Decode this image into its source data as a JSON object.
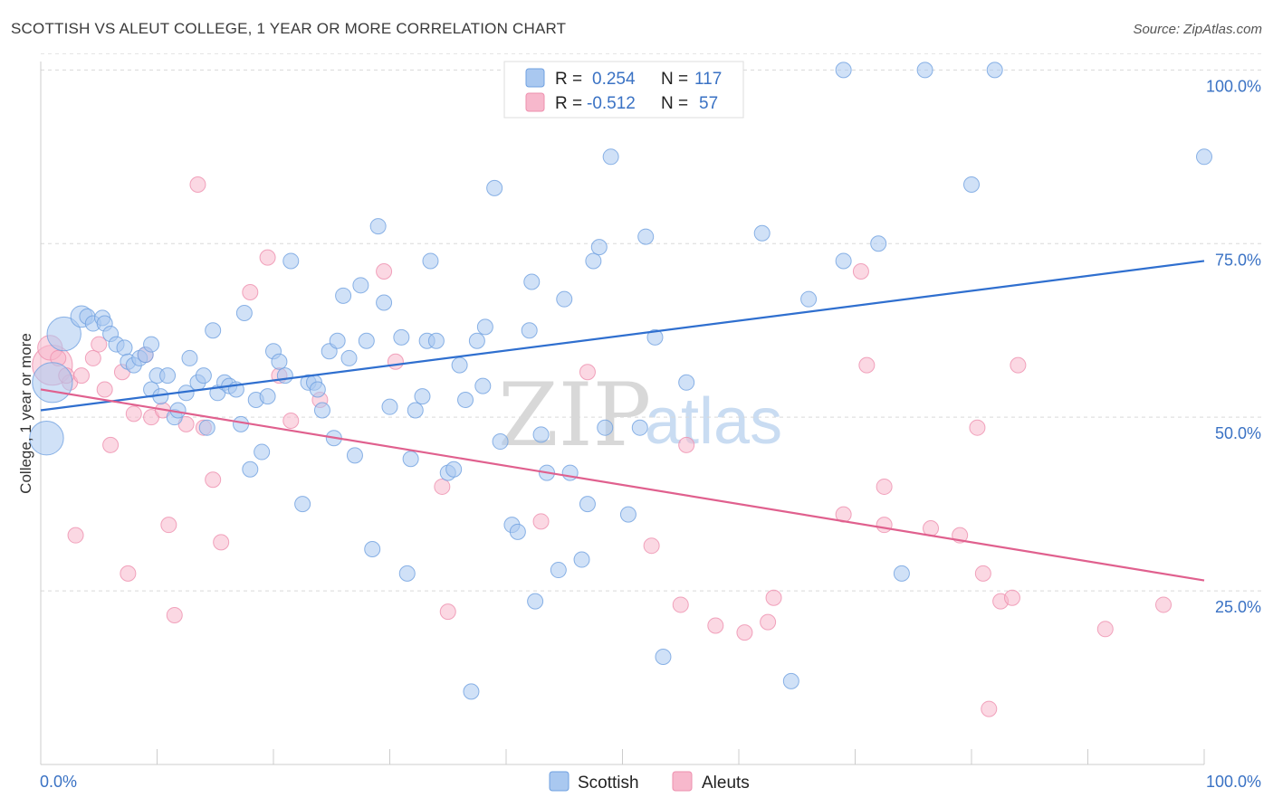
{
  "header": {
    "title": "SCOTTISH VS ALEUT COLLEGE, 1 YEAR OR MORE CORRELATION CHART",
    "source": "Source: ZipAtlas.com"
  },
  "watermark": {
    "part1": "ZIP",
    "part2": "atlas"
  },
  "legend": {
    "rows": [
      {
        "r_label": "R =",
        "r_value": "0.254",
        "n_label": "N =",
        "n_value": "117",
        "color": "#a9c8f0"
      },
      {
        "r_label": "R =",
        "r_value": "-0.512",
        "n_label": "N =",
        "n_value": "57",
        "color": "#f7b8cc"
      }
    ]
  },
  "bottom_legend": [
    {
      "label": "Scottish",
      "color": "#a9c8f0"
    },
    {
      "label": "Aleuts",
      "color": "#f7b8cc"
    }
  ],
  "chart_data": {
    "type": "scatter",
    "title": "SCOTTISH VS ALEUT COLLEGE, 1 YEAR OR MORE CORRELATION CHART",
    "ylabel": "College, 1 year or more",
    "xlabel": "",
    "xlim": [
      0,
      100
    ],
    "ylim": [
      0,
      102
    ],
    "y_ticks": [
      {
        "value": 25,
        "label": "25.0%"
      },
      {
        "value": 50,
        "label": "50.0%"
      },
      {
        "value": 75,
        "label": "75.0%"
      },
      {
        "value": 100,
        "label": "100.0%"
      }
    ],
    "x_ticks": [
      {
        "value": 0,
        "label": "0.0%"
      },
      {
        "value": 100,
        "label": "100.0%"
      }
    ],
    "grid": true,
    "legend_placement": "top-center",
    "series": [
      {
        "name": "Scottish",
        "color": "#6fa0e0",
        "fill": "#a9c8f0",
        "trend": {
          "x": [
            0,
            100
          ],
          "y": [
            51.0,
            72.5
          ],
          "color": "#2f6fcf"
        },
        "points": [
          [
            0.5,
            47,
            2.2
          ],
          [
            1.0,
            55,
            2.6
          ],
          [
            2.0,
            62,
            2.2
          ],
          [
            3.5,
            64.5,
            1.4
          ],
          [
            4.0,
            64.5,
            1.0
          ],
          [
            4.5,
            63.5,
            1.0
          ],
          [
            5.3,
            64.3,
            1.0
          ],
          [
            5.5,
            63.5,
            1.0
          ],
          [
            6.0,
            62,
            1.0
          ],
          [
            6.5,
            60.5,
            1.0
          ],
          [
            7.2,
            60,
            1.0
          ],
          [
            7.5,
            58,
            1.0
          ],
          [
            8.0,
            57.5,
            1.0
          ],
          [
            8.5,
            58.5,
            1.0
          ],
          [
            9.0,
            59,
            1.0
          ],
          [
            9.5,
            54,
            1.0
          ],
          [
            10.0,
            56,
            1.0
          ],
          [
            10.3,
            53,
            1.0
          ],
          [
            10.9,
            56,
            1.0
          ],
          [
            11.5,
            50,
            1.0
          ],
          [
            11.8,
            51,
            1.0
          ],
          [
            12.5,
            53.5,
            1.0
          ],
          [
            12.8,
            58.5,
            1.0
          ],
          [
            13.5,
            55,
            1.0
          ],
          [
            14.0,
            56,
            1.0
          ],
          [
            14.3,
            48.5,
            1.0
          ],
          [
            14.8,
            62.5,
            1.0
          ],
          [
            15.2,
            53.5,
            1.0
          ],
          [
            15.8,
            55,
            1.0
          ],
          [
            16.2,
            54.5,
            1.0
          ],
          [
            16.8,
            54,
            1.0
          ],
          [
            17.2,
            49,
            1.0
          ],
          [
            17.5,
            65,
            1.0
          ],
          [
            18.0,
            42.5,
            1.0
          ],
          [
            18.5,
            52.5,
            1.0
          ],
          [
            19.0,
            45,
            1.0
          ],
          [
            19.5,
            53,
            1.0
          ],
          [
            20.0,
            59.5,
            1.0
          ],
          [
            20.5,
            58,
            1.0
          ],
          [
            21.0,
            56,
            1.0
          ],
          [
            21.5,
            72.5,
            1.0
          ],
          [
            22.5,
            37.5,
            1.0
          ],
          [
            23.0,
            55,
            1.0
          ],
          [
            23.5,
            55,
            1.0
          ],
          [
            23.8,
            54,
            1.0
          ],
          [
            24.2,
            51,
            1.0
          ],
          [
            24.8,
            59.5,
            1.0
          ],
          [
            25.5,
            61,
            1.0
          ],
          [
            25.2,
            47,
            1.0
          ],
          [
            26.5,
            58.5,
            1.0
          ],
          [
            27.0,
            44.5,
            1.0
          ],
          [
            26.0,
            67.5,
            1.0
          ],
          [
            27.5,
            69,
            1.0
          ],
          [
            28.0,
            61,
            1.0
          ],
          [
            28.5,
            31,
            1.0
          ],
          [
            29.0,
            77.5,
            1.0
          ],
          [
            29.5,
            66.5,
            1.0
          ],
          [
            30.0,
            51.5,
            1.0
          ],
          [
            31.0,
            61.5,
            1.0
          ],
          [
            31.5,
            27.5,
            1.0
          ],
          [
            31.8,
            44,
            1.0
          ],
          [
            32.2,
            51,
            1.0
          ],
          [
            32.8,
            53,
            1.0
          ],
          [
            33.2,
            61,
            1.0
          ],
          [
            34.0,
            61,
            1.0
          ],
          [
            33.5,
            72.5,
            1.0
          ],
          [
            35.0,
            42,
            1.0
          ],
          [
            35.5,
            42.5,
            1.0
          ],
          [
            36.0,
            57.5,
            1.0
          ],
          [
            36.5,
            52.5,
            1.0
          ],
          [
            37.5,
            61,
            1.0
          ],
          [
            38.2,
            63,
            1.0
          ],
          [
            38.0,
            54.5,
            1.0
          ],
          [
            37.0,
            10.5,
            1.0
          ],
          [
            39.0,
            83,
            1.0
          ],
          [
            39.5,
            46.5,
            1.0
          ],
          [
            40.5,
            34.5,
            1.0
          ],
          [
            41.0,
            33.5,
            1.0
          ],
          [
            42.0,
            62.5,
            1.0
          ],
          [
            42.2,
            69.5,
            1.0
          ],
          [
            42.5,
            23.5,
            1.0
          ],
          [
            43.0,
            47.5,
            1.0
          ],
          [
            43.5,
            42,
            1.0
          ],
          [
            44.5,
            28,
            1.0
          ],
          [
            45.0,
            67,
            1.0
          ],
          [
            45.5,
            42,
            1.0
          ],
          [
            46.5,
            29.5,
            1.0
          ],
          [
            47.0,
            37.5,
            1.0
          ],
          [
            47.5,
            72.5,
            1.0
          ],
          [
            48.0,
            74.5,
            1.0
          ],
          [
            48.5,
            48.5,
            1.0
          ],
          [
            49.0,
            87.5,
            1.0
          ],
          [
            50.5,
            36,
            1.0
          ],
          [
            51.5,
            48.5,
            1.0
          ],
          [
            52.0,
            76,
            1.0
          ],
          [
            52.8,
            61.5,
            1.0
          ],
          [
            53.5,
            15.5,
            1.0
          ],
          [
            55.5,
            55,
            1.0
          ],
          [
            58.0,
            100,
            1.0
          ],
          [
            62.0,
            76.5,
            1.0
          ],
          [
            64.5,
            12,
            1.0
          ],
          [
            66.0,
            67,
            1.0
          ],
          [
            69.0,
            100,
            1.0
          ],
          [
            69.0,
            72.5,
            1.0
          ],
          [
            72.0,
            75,
            1.0
          ],
          [
            74.0,
            27.5,
            1.0
          ],
          [
            76.0,
            100,
            1.0
          ],
          [
            80.0,
            83.5,
            1.0
          ],
          [
            82.0,
            100,
            1.0
          ],
          [
            100.0,
            87.5,
            1.0
          ],
          [
            42.0,
            95,
            1.0
          ],
          [
            51.5,
            95,
            1.0
          ],
          [
            59.0,
            100,
            1.0
          ],
          [
            55.0,
            100,
            1.0
          ],
          [
            9.5,
            60.5,
            1.0
          ]
        ]
      },
      {
        "name": "Aleuts",
        "color": "#ee8fae",
        "fill": "#f7b8cc",
        "trend": {
          "x": [
            0,
            100
          ],
          "y": [
            54.0,
            26.5
          ],
          "color": "#e0608e"
        },
        "points": [
          [
            1.0,
            57.5,
            2.6
          ],
          [
            0.8,
            60,
            1.6
          ],
          [
            1.5,
            58.5,
            1.0
          ],
          [
            2.5,
            55,
            1.0
          ],
          [
            3.5,
            56,
            1.0
          ],
          [
            4.5,
            58.5,
            1.0
          ],
          [
            5.0,
            60.5,
            1.0
          ],
          [
            5.5,
            54,
            1.0
          ],
          [
            6.0,
            46,
            1.0
          ],
          [
            7.0,
            56.5,
            1.0
          ],
          [
            7.5,
            27.5,
            1.0
          ],
          [
            8.0,
            50.5,
            1.0
          ],
          [
            9.0,
            59,
            1.0
          ],
          [
            9.5,
            50,
            1.0
          ],
          [
            10.5,
            51,
            1.0
          ],
          [
            11.0,
            34.5,
            1.0
          ],
          [
            11.5,
            21.5,
            1.0
          ],
          [
            12.5,
            49,
            1.0
          ],
          [
            13.5,
            83.5,
            1.0
          ],
          [
            14.0,
            48.5,
            1.0
          ],
          [
            14.8,
            41,
            1.0
          ],
          [
            15.5,
            32,
            1.0
          ],
          [
            18.0,
            68,
            1.0
          ],
          [
            19.5,
            73,
            1.0
          ],
          [
            20.5,
            56,
            1.0
          ],
          [
            21.5,
            49.5,
            1.0
          ],
          [
            24.0,
            52.5,
            1.0
          ],
          [
            29.5,
            71,
            1.0
          ],
          [
            30.5,
            58,
            1.0
          ],
          [
            34.5,
            40,
            1.0
          ],
          [
            35.0,
            22,
            1.0
          ],
          [
            43.0,
            35,
            1.0
          ],
          [
            47.0,
            56.5,
            1.0
          ],
          [
            52.5,
            31.5,
            1.0
          ],
          [
            55.0,
            23,
            1.0
          ],
          [
            55.5,
            46,
            1.0
          ],
          [
            58.0,
            20,
            1.0
          ],
          [
            60.5,
            19,
            1.0
          ],
          [
            62.5,
            20.5,
            1.0
          ],
          [
            63.0,
            24,
            1.0
          ],
          [
            69.0,
            36,
            1.0
          ],
          [
            70.5,
            71,
            1.0
          ],
          [
            71.0,
            57.5,
            1.0
          ],
          [
            72.5,
            40,
            1.0
          ],
          [
            72.5,
            34.5,
            1.0
          ],
          [
            76.5,
            34,
            1.0
          ],
          [
            79.0,
            33,
            1.0
          ],
          [
            80.5,
            48.5,
            1.0
          ],
          [
            81.0,
            27.5,
            1.0
          ],
          [
            82.5,
            23.5,
            1.0
          ],
          [
            83.5,
            24,
            1.0
          ],
          [
            84.0,
            57.5,
            1.0
          ],
          [
            91.5,
            19.5,
            1.0
          ],
          [
            96.5,
            23,
            1.0
          ],
          [
            81.5,
            8,
            1.0
          ],
          [
            3.0,
            33,
            1.0
          ],
          [
            2.2,
            56,
            1.0
          ]
        ]
      }
    ]
  }
}
